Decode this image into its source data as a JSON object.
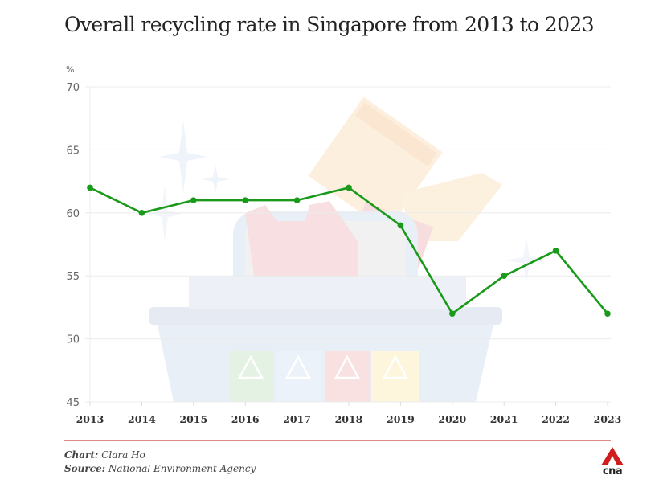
{
  "chart_data": {
    "type": "line",
    "title": "Overall recycling rate in Singapore from 2013 to 2023",
    "ylabel": "%",
    "xlabel": "",
    "categories": [
      "2013",
      "2014",
      "2015",
      "2016",
      "2017",
      "2018",
      "2019",
      "2020",
      "2021",
      "2022",
      "2023"
    ],
    "series": [
      {
        "name": "Overall recycling rate",
        "values": [
          62,
          60,
          61,
          61,
          61,
          62,
          59,
          52,
          55,
          57,
          52
        ],
        "color": "#1a9a1a"
      }
    ],
    "ylim": [
      45,
      70
    ],
    "yticks": [
      "45",
      "50",
      "55",
      "60",
      "65",
      "70"
    ],
    "grid": true,
    "legend": "none"
  },
  "footer": {
    "chart_label": "Chart:",
    "chart_value": "Clara Ho",
    "source_label": "Source:",
    "source_value": "National Environment Agency",
    "logo_text": "cna",
    "logo_color": "#d01c1c",
    "divider_color": "#e08a8a"
  },
  "background_art": {
    "description": "faded recycling bin illustration",
    "bin_color": "#d6e2f0",
    "panel_colors": [
      "#cfe8cf",
      "#d9e6f5",
      "#f6c9c9",
      "#fdf0c0"
    ]
  }
}
